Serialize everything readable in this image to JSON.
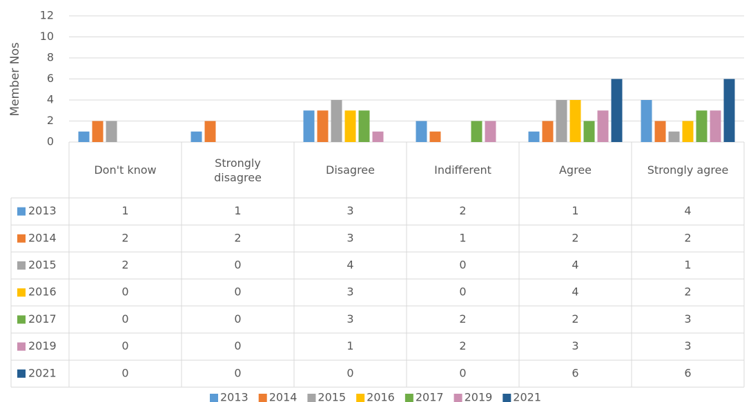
{
  "chart_data": {
    "type": "bar",
    "y_axis_label": "Member Nos",
    "categories": [
      "Don't know",
      "Strongly disagree",
      "Disagree",
      "Indifferent",
      "Agree",
      "Strongly agree"
    ],
    "series": [
      {
        "name": "2013",
        "color": "#5b9bd5",
        "values": [
          1,
          1,
          3,
          2,
          1,
          4
        ]
      },
      {
        "name": "2014",
        "color": "#ed7d31",
        "values": [
          2,
          2,
          3,
          1,
          2,
          2
        ]
      },
      {
        "name": "2015",
        "color": "#a5a5a5",
        "values": [
          2,
          0,
          4,
          0,
          4,
          1
        ]
      },
      {
        "name": "2016",
        "color": "#ffc000",
        "values": [
          0,
          0,
          3,
          0,
          4,
          2
        ]
      },
      {
        "name": "2017",
        "color": "#70ad47",
        "values": [
          0,
          0,
          3,
          2,
          2,
          3
        ]
      },
      {
        "name": "2019",
        "color": "#cc8fb1",
        "values": [
          0,
          0,
          1,
          2,
          3,
          3
        ]
      },
      {
        "name": "2021",
        "color": "#255e91",
        "values": [
          0,
          0,
          0,
          0,
          6,
          6
        ]
      }
    ],
    "ylim": [
      0,
      12
    ],
    "yticks": [
      0,
      2,
      4,
      6,
      8,
      10,
      12
    ],
    "grid": true,
    "data_table": true,
    "legend": "bottom"
  }
}
